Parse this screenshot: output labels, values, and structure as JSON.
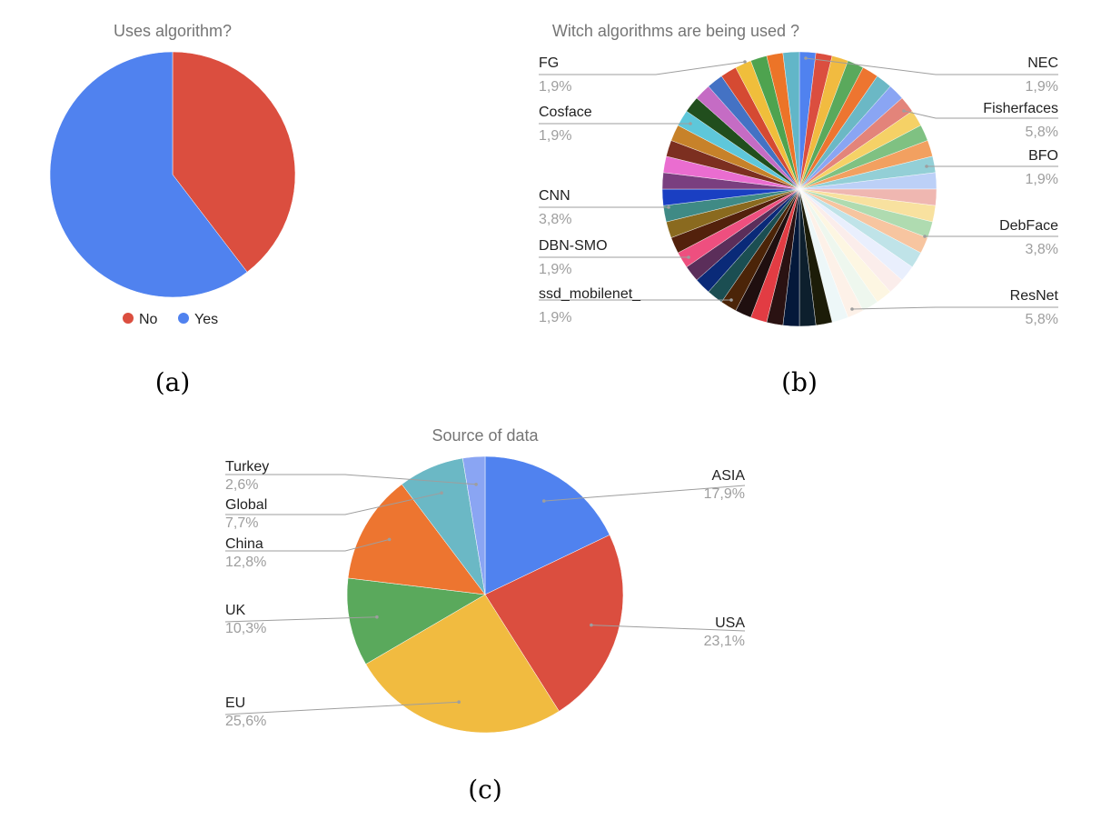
{
  "chart_data": [
    {
      "type": "pie",
      "title": "Uses algorithm?",
      "caption": "(a)",
      "legend_position": "bottom",
      "slices": [
        {
          "label": "No",
          "value": 39.6,
          "color": "#db4e3f"
        },
        {
          "label": "Yes",
          "value": 60.4,
          "color": "#5082ef"
        }
      ]
    },
    {
      "type": "pie",
      "title": "Witch algorithms are being used ?",
      "caption": "(b)",
      "slice_count": 52,
      "labeled_slices": [
        {
          "label": "FG",
          "pct": "1,9%",
          "side": "left"
        },
        {
          "label": "Cosface",
          "pct": "1,9%",
          "side": "left"
        },
        {
          "label": "CNN",
          "pct": "3,8%",
          "side": "left"
        },
        {
          "label": "DBN-SMO",
          "pct": "1,9%",
          "side": "left"
        },
        {
          "label": "ssd_mobilenet_",
          "pct": "1,9%",
          "side": "left"
        },
        {
          "label": "NEC",
          "pct": "1,9%",
          "side": "right"
        },
        {
          "label": "Fisherfaces",
          "pct": "5,8%",
          "side": "right"
        },
        {
          "label": "BFO",
          "pct": "1,9%",
          "side": "right"
        },
        {
          "label": "DebFace",
          "pct": "3,8%",
          "side": "right"
        },
        {
          "label": "ResNet",
          "pct": "5,8%",
          "side": "right"
        }
      ],
      "slice_colors": [
        "#5082ef",
        "#db4e3f",
        "#f1bb40",
        "#5aa95c",
        "#ed7530",
        "#6bb8c5",
        "#8aa5f3",
        "#e3847a",
        "#f5d166",
        "#7fc182",
        "#f2a060",
        "#93cfd6",
        "#bcd0f7",
        "#efb7b1",
        "#f8e19f",
        "#afdbb0",
        "#f7c5a0",
        "#bfe3e8",
        "#e9effd",
        "#fbedeb",
        "#fdf6e2",
        "#eef7ee",
        "#fdf1e8",
        "#edf7f8",
        "#1c1c08",
        "#0d1f2d",
        "#04183a",
        "#2a1212",
        "#e23c43",
        "#1f0f0f",
        "#4b2408",
        "#1b4e52",
        "#0a2a78",
        "#5b2e5a",
        "#ee4f7f",
        "#53210c",
        "#8a6a1f",
        "#3f8a85",
        "#1a3fc2",
        "#7a3f7f",
        "#ea6dd0",
        "#7c2f20",
        "#c7822a",
        "#5ec7da",
        "#214e1d",
        "#c56cc4",
        "#4472c4",
        "#d54a32",
        "#f0be3b",
        "#4ea34f",
        "#ec7428",
        "#62b6c8"
      ]
    },
    {
      "type": "pie",
      "title": "Source of data",
      "caption": "(c)",
      "slices": [
        {
          "label": "ASIA",
          "pct": "17,9%",
          "value": 17.9,
          "color": "#5082ef"
        },
        {
          "label": "USA",
          "pct": "23,1%",
          "value": 23.1,
          "color": "#db4e3f"
        },
        {
          "label": "EU",
          "pct": "25,6%",
          "value": 25.6,
          "color": "#f1bb40"
        },
        {
          "label": "UK",
          "pct": "10,3%",
          "value": 10.3,
          "color": "#5aa95c"
        },
        {
          "label": "China",
          "pct": "12,8%",
          "value": 12.8,
          "color": "#ed7530"
        },
        {
          "label": "Global",
          "pct": "7,7%",
          "value": 7.7,
          "color": "#6bb8c5"
        },
        {
          "label": "Turkey",
          "pct": "2,6%",
          "value": 2.6,
          "color": "#8aa5f3"
        }
      ]
    }
  ]
}
